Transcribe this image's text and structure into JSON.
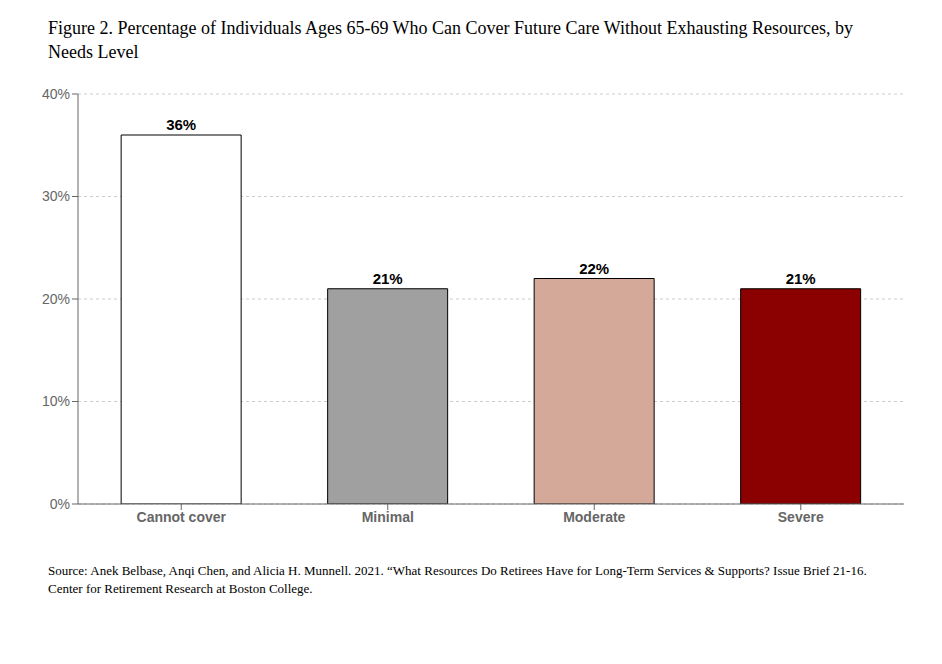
{
  "chart_data": {
    "type": "bar",
    "title": "Figure 2. Percentage of Individuals Ages 65-69 Who Can Cover Future Care Without Exhausting Resources, by Needs Level",
    "annotations": [
      "Source: Anek Belbase, Anqi Chen, and Alicia H. Munnell. 2021. “What Resources Do Retirees Have for Long-Term Services & Supports? Issue Brief 21-16. Center for Retirement Research at Boston College."
    ],
    "categories": [
      "Cannot cover",
      "Minimal",
      "Moderate",
      "Severe"
    ],
    "values": [
      36,
      21,
      22,
      21
    ],
    "value_labels": [
      "36%",
      "21%",
      "22%",
      "21%"
    ],
    "data_labels": true,
    "colors": [
      "#ffffff",
      "#a0a0a0",
      "#d4a99a",
      "#8b0000"
    ],
    "ylim": [
      0,
      40
    ],
    "yticks": [
      {
        "value": 0,
        "label": "0%"
      },
      {
        "value": 10,
        "label": "10%"
      },
      {
        "value": 20,
        "label": "20%"
      },
      {
        "value": 30,
        "label": "30%"
      },
      {
        "value": 40,
        "label": "40%"
      }
    ],
    "grid": true
  }
}
